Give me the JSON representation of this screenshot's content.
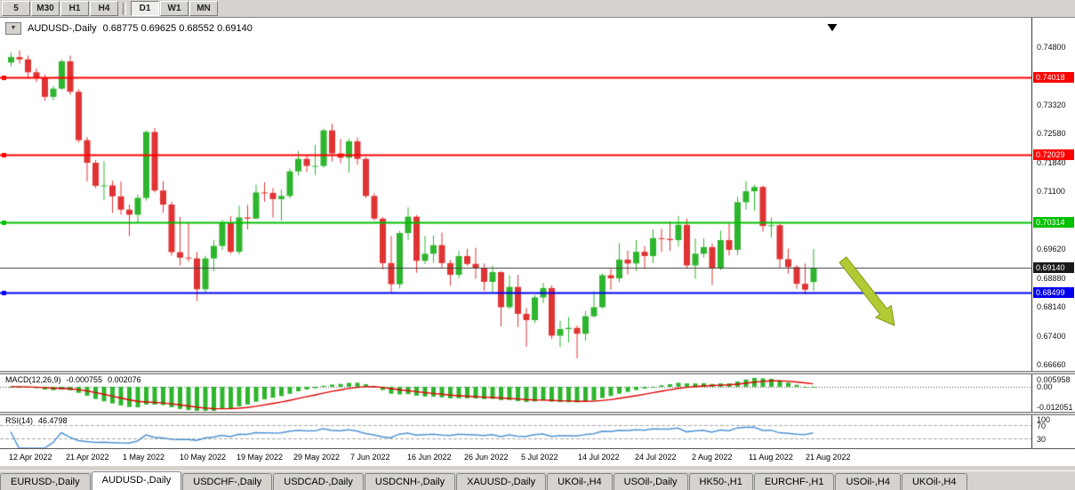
{
  "toolbar": {
    "timeframes": [
      "5",
      "M30",
      "H1",
      "H4",
      "D1",
      "W1",
      "MN"
    ],
    "active": "D1",
    "separator_after_index": 3
  },
  "header": {
    "symbol": "AUDUSD-,Daily",
    "ohlc": "0.68775 0.69625 0.68552 0.69140"
  },
  "chart_data": {
    "type": "candlestick",
    "title": "AUDUSD-,Daily",
    "current_open": "0.68775",
    "current_high": "0.69625",
    "current_low": "0.68552",
    "current_close": "0.69140",
    "ylim": [
      0.665,
      0.755
    ],
    "y_ticks": [
      {
        "price": 0.748,
        "label": "0.74800"
      },
      {
        "price": 0.7406,
        "label": "0.74060"
      },
      {
        "price": 0.7332,
        "label": "0.73320"
      },
      {
        "price": 0.7258,
        "label": "0.72580"
      },
      {
        "price": 0.7184,
        "label": "0.71840"
      },
      {
        "price": 0.711,
        "label": "0.71100"
      },
      {
        "price": 0.7036,
        "label": "0.70360"
      },
      {
        "price": 0.6962,
        "label": "0.69620"
      },
      {
        "price": 0.6888,
        "label": "0.68880"
      },
      {
        "price": 0.6814,
        "label": "0.68140"
      },
      {
        "price": 0.674,
        "label": "0.67400"
      },
      {
        "price": 0.6666,
        "label": "0.66660"
      }
    ],
    "levels": [
      {
        "price": 0.74018,
        "label": "0.74018",
        "color": "#ff0000",
        "width": 2,
        "handle": true
      },
      {
        "price": 0.72029,
        "label": "0.72029",
        "color": "#ff0000",
        "width": 2,
        "handle": true
      },
      {
        "price": 0.70314,
        "label": "0.70314",
        "color": "#00c000",
        "width": 2,
        "handle": true
      },
      {
        "price": 0.6914,
        "label": "0.69140",
        "color": "#1a1a1a",
        "width": 1,
        "handle": false,
        "kind": "bid"
      },
      {
        "price": 0.68499,
        "label": "0.68499",
        "color": "#0000ee",
        "width": 2,
        "handle": true
      }
    ],
    "x_tick_labels": [
      "12 Apr 2022",
      "21 Apr 2022",
      "1 May 2022",
      "10 May 2022",
      "19 May 2022",
      "29 May 2022",
      "7 Jun 2022",
      "16 Jun 2022",
      "26 Jun 2022",
      "5 Jul 2022",
      "14 Jul 2022",
      "24 Jul 2022",
      "2 Aug 2022",
      "11 Aug 2022",
      "21 Aug 2022"
    ],
    "candles": [
      [
        0.744,
        0.7466,
        0.743,
        0.7454
      ],
      [
        0.7454,
        0.7471,
        0.7437,
        0.7448
      ],
      [
        0.7448,
        0.7458,
        0.7398,
        0.7415
      ],
      [
        0.7415,
        0.7425,
        0.739,
        0.7401
      ],
      [
        0.7401,
        0.7409,
        0.7342,
        0.7352
      ],
      [
        0.7352,
        0.738,
        0.7343,
        0.7373
      ],
      [
        0.7373,
        0.7448,
        0.737,
        0.7443
      ],
      [
        0.7443,
        0.7458,
        0.7357,
        0.7365
      ],
      [
        0.7365,
        0.7371,
        0.7235,
        0.7241
      ],
      [
        0.7241,
        0.7249,
        0.7135,
        0.7183
      ],
      [
        0.7183,
        0.719,
        0.7118,
        0.7124
      ],
      [
        0.7124,
        0.7187,
        0.7087,
        0.7125
      ],
      [
        0.7125,
        0.7137,
        0.7055,
        0.7097
      ],
      [
        0.7097,
        0.7135,
        0.705,
        0.7063
      ],
      [
        0.7063,
        0.7076,
        0.6995,
        0.705
      ],
      [
        0.705,
        0.7102,
        0.7029,
        0.7093
      ],
      [
        0.7093,
        0.7266,
        0.7086,
        0.7262
      ],
      [
        0.7262,
        0.7272,
        0.7107,
        0.7112
      ],
      [
        0.7112,
        0.7136,
        0.7055,
        0.7076
      ],
      [
        0.7076,
        0.7084,
        0.6945,
        0.6954
      ],
      [
        0.6954,
        0.7045,
        0.692,
        0.694
      ],
      [
        0.694,
        0.703,
        0.693,
        0.6938
      ],
      [
        0.6938,
        0.6955,
        0.6829,
        0.6859
      ],
      [
        0.6859,
        0.6945,
        0.685,
        0.6938
      ],
      [
        0.6938,
        0.6985,
        0.6905,
        0.697
      ],
      [
        0.697,
        0.7037,
        0.696,
        0.7029
      ],
      [
        0.7029,
        0.7046,
        0.695,
        0.6955
      ],
      [
        0.6955,
        0.7073,
        0.6948,
        0.7043
      ],
      [
        0.7043,
        0.7075,
        0.7012,
        0.704
      ],
      [
        0.704,
        0.7127,
        0.7038,
        0.7107
      ],
      [
        0.7107,
        0.7133,
        0.7083,
        0.7106
      ],
      [
        0.7106,
        0.7118,
        0.7043,
        0.709
      ],
      [
        0.709,
        0.7115,
        0.7035,
        0.7098
      ],
      [
        0.7098,
        0.7168,
        0.7092,
        0.7161
      ],
      [
        0.7161,
        0.7213,
        0.715,
        0.7193
      ],
      [
        0.7193,
        0.7203,
        0.716,
        0.7175
      ],
      [
        0.7175,
        0.7229,
        0.7152,
        0.7175
      ],
      [
        0.7175,
        0.727,
        0.717,
        0.7266
      ],
      [
        0.7266,
        0.7283,
        0.7186,
        0.7207
      ],
      [
        0.7207,
        0.7244,
        0.7182,
        0.7196
      ],
      [
        0.7196,
        0.7245,
        0.7158,
        0.7238
      ],
      [
        0.7238,
        0.7248,
        0.7178,
        0.7193
      ],
      [
        0.7193,
        0.7198,
        0.7093,
        0.7098
      ],
      [
        0.7098,
        0.7105,
        0.7035,
        0.704
      ],
      [
        0.704,
        0.7044,
        0.691,
        0.6926
      ],
      [
        0.6926,
        0.6995,
        0.685,
        0.6872
      ],
      [
        0.6872,
        0.7009,
        0.6861,
        0.7003
      ],
      [
        0.7003,
        0.7069,
        0.6985,
        0.7045
      ],
      [
        0.7045,
        0.7049,
        0.6901,
        0.6932
      ],
      [
        0.6932,
        0.6996,
        0.6923,
        0.695
      ],
      [
        0.695,
        0.6997,
        0.6927,
        0.6972
      ],
      [
        0.6972,
        0.7004,
        0.6913,
        0.6926
      ],
      [
        0.6926,
        0.6934,
        0.6868,
        0.6896
      ],
      [
        0.6896,
        0.6957,
        0.6887,
        0.6944
      ],
      [
        0.6944,
        0.6963,
        0.6919,
        0.6924
      ],
      [
        0.6924,
        0.6965,
        0.6886,
        0.6912
      ],
      [
        0.6912,
        0.6925,
        0.6855,
        0.6878
      ],
      [
        0.6878,
        0.6919,
        0.6851,
        0.6903
      ],
      [
        0.6903,
        0.6905,
        0.6764,
        0.6813
      ],
      [
        0.6813,
        0.6895,
        0.6808,
        0.6865
      ],
      [
        0.6865,
        0.6896,
        0.6762,
        0.6796
      ],
      [
        0.6796,
        0.6812,
        0.6712,
        0.678
      ],
      [
        0.678,
        0.6844,
        0.6772,
        0.6838
      ],
      [
        0.6838,
        0.6875,
        0.6823,
        0.6862
      ],
      [
        0.6862,
        0.6869,
        0.6731,
        0.674
      ],
      [
        0.674,
        0.6778,
        0.6711,
        0.6757
      ],
      [
        0.6757,
        0.6788,
        0.6723,
        0.676
      ],
      [
        0.676,
        0.6766,
        0.6682,
        0.6745
      ],
      [
        0.6745,
        0.6803,
        0.6727,
        0.679
      ],
      [
        0.679,
        0.6854,
        0.6786,
        0.6813
      ],
      [
        0.6813,
        0.69,
        0.681,
        0.6895
      ],
      [
        0.6895,
        0.6911,
        0.6858,
        0.6887
      ],
      [
        0.6887,
        0.6977,
        0.6877,
        0.6935
      ],
      [
        0.6935,
        0.6958,
        0.6897,
        0.6925
      ],
      [
        0.6925,
        0.6985,
        0.6906,
        0.6955
      ],
      [
        0.6955,
        0.697,
        0.6911,
        0.6944
      ],
      [
        0.6944,
        0.7013,
        0.6926,
        0.699
      ],
      [
        0.699,
        0.7014,
        0.6955,
        0.6988
      ],
      [
        0.6988,
        0.7032,
        0.6957,
        0.6985
      ],
      [
        0.6985,
        0.7047,
        0.6968,
        0.7024
      ],
      [
        0.7024,
        0.704,
        0.6912,
        0.692
      ],
      [
        0.692,
        0.6989,
        0.6886,
        0.695
      ],
      [
        0.695,
        0.699,
        0.694,
        0.6967
      ],
      [
        0.6967,
        0.6976,
        0.687,
        0.6912
      ],
      [
        0.6912,
        0.7009,
        0.6908,
        0.6985
      ],
      [
        0.6985,
        0.7027,
        0.6945,
        0.696
      ],
      [
        0.696,
        0.7096,
        0.6946,
        0.7082
      ],
      [
        0.7082,
        0.7136,
        0.7063,
        0.711
      ],
      [
        0.711,
        0.7126,
        0.706,
        0.7121
      ],
      [
        0.7121,
        0.7125,
        0.7007,
        0.7021
      ],
      [
        0.7021,
        0.7043,
        0.6991,
        0.7023
      ],
      [
        0.7023,
        0.7026,
        0.6912,
        0.6936
      ],
      [
        0.6936,
        0.6963,
        0.6899,
        0.6916
      ],
      [
        0.6916,
        0.6921,
        0.686,
        0.6873
      ],
      [
        0.6873,
        0.6925,
        0.6846,
        0.6858
      ],
      [
        0.68775,
        0.69625,
        0.68552,
        0.6914
      ]
    ],
    "colors": {
      "bull": "#2eb52e",
      "bear": "#e03333",
      "bid_line": "#3f3f3f"
    },
    "macd": {
      "label": "MACD(12,26,9)",
      "value_main": "-0.000755",
      "value_signal": "0.002076",
      "axis_labels": [
        "0.005958",
        "0.00",
        "-0.012051"
      ],
      "scale_max": 0.005958,
      "scale_min": -0.012051,
      "histogram_color": "#2eb52e",
      "signal_color": "#dd0000"
    },
    "rsi": {
      "label": "RSI(14)",
      "value": "46.4798",
      "axis_labels": [
        "100",
        "70",
        "30"
      ],
      "level_lines": [
        70,
        30
      ],
      "line_color": "#4f93d2",
      "scale": [
        0,
        100
      ]
    },
    "annotations": [
      {
        "type": "arrow",
        "name": "sell-arrow-annotation",
        "color": "#b2cb35",
        "stroke": "#7e9a1a",
        "from": [
          948,
          292
        ],
        "to": [
          1006,
          366
        ],
        "shaft": 5,
        "head_w": 11,
        "head_len": 20
      },
      {
        "type": "triangle-down",
        "name": "down-triangle-marker",
        "color": "#000000",
        "at": [
          936,
          27
        ],
        "size": 11
      }
    ]
  },
  "tabs": {
    "active_index": 1,
    "items": [
      "EURUSD-,Daily",
      "AUDUSD-,Daily",
      "USDCHF-,Daily",
      "USDCAD-,Daily",
      "USDCNH-,Daily",
      "XAUUSD-,Daily",
      "UKOil-,H4",
      "USOil-,Daily",
      "HK50-,H1",
      "EURCHF-,H1",
      "USOil-,H4",
      "UKOil-,H4"
    ]
  }
}
